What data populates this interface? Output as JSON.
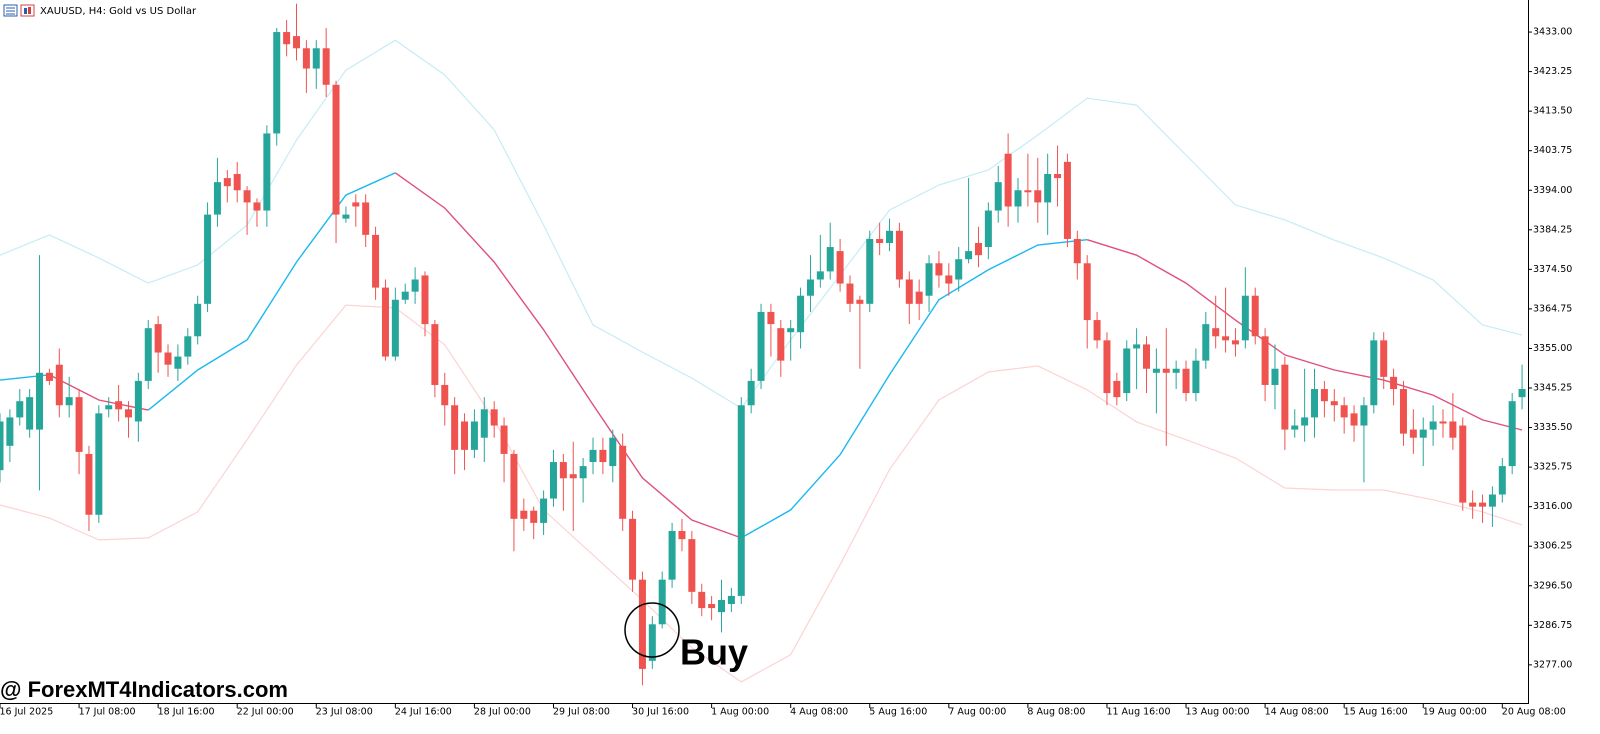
{
  "chart_data": {
    "type": "candlestick",
    "title": "XAUUSD, H4:  Gold vs US Dollar",
    "annotations": [
      "Buy",
      "@ ForexMT4Indicators.com"
    ],
    "up_color": "#26a69a",
    "down_color": "#ef5350",
    "xlim": [
      0,
      154.6
    ],
    "ylim": [
      3267.6,
      3440.9
    ],
    "yticks": [
      {
        "value": 3433,
        "label": "3433.00"
      },
      {
        "value": 3423.25,
        "label": "3423.25"
      },
      {
        "value": 3413.5,
        "label": "3413.50"
      },
      {
        "value": 3403.75,
        "label": "3403.75"
      },
      {
        "value": 3394,
        "label": "3394.00"
      },
      {
        "value": 3384.25,
        "label": "3384.25"
      },
      {
        "value": 3374.5,
        "label": "3374.50"
      },
      {
        "value": 3364.75,
        "label": "3364.75"
      },
      {
        "value": 3355,
        "label": "3355.00"
      },
      {
        "value": 3345.25,
        "label": "3345.25"
      },
      {
        "value": 3335.5,
        "label": "3335.50"
      },
      {
        "value": 3325.75,
        "label": "3325.75"
      },
      {
        "value": 3316,
        "label": "3316.00"
      },
      {
        "value": 3306.25,
        "label": "3306.25"
      },
      {
        "value": 3296.5,
        "label": "3296.50"
      },
      {
        "value": 3286.75,
        "label": "3286.75"
      },
      {
        "value": 3277,
        "label": "3277.00"
      }
    ],
    "xticks": [
      {
        "value": 0,
        "label": "16 Jul 2025"
      },
      {
        "value": 8,
        "label": "17 Jul 08:00"
      },
      {
        "value": 16,
        "label": "18 Jul 16:00"
      },
      {
        "value": 24,
        "label": "22 Jul 00:00"
      },
      {
        "value": 32,
        "label": "23 Jul 08:00"
      },
      {
        "value": 40,
        "label": "24 Jul 16:00"
      },
      {
        "value": 48,
        "label": "28 Jul 00:00"
      },
      {
        "value": 56,
        "label": "29 Jul 08:00"
      },
      {
        "value": 64,
        "label": "30 Jul 16:00"
      },
      {
        "value": 72,
        "label": "1 Aug 00:00"
      },
      {
        "value": 80,
        "label": "4 Aug 08:00"
      },
      {
        "value": 88,
        "label": "5 Aug 16:00"
      },
      {
        "value": 96,
        "label": "7 Aug 00:00"
      },
      {
        "value": 104,
        "label": "8 Aug 08:00"
      },
      {
        "value": 112,
        "label": "11 Aug 16:00"
      },
      {
        "value": 120,
        "label": "13 Aug 00:00"
      },
      {
        "value": 128,
        "label": "14 Aug 08:00"
      },
      {
        "value": 136,
        "label": "15 Aug 16:00"
      },
      {
        "value": 144,
        "label": "19 Aug 00:00"
      },
      {
        "value": 152,
        "label": "20 Aug 08:00"
      }
    ],
    "open": [
      3325,
      3331,
      3338,
      3335,
      3335,
      3349,
      3351,
      3341,
      3343,
      3329,
      3314,
      3340,
      3342,
      3340,
      3337,
      3347,
      3361,
      3354,
      3350,
      3353,
      3358,
      3366,
      3388,
      3397,
      3398,
      3394,
      3391,
      3389,
      3408,
      3433,
      3432,
      3429,
      3424,
      3429,
      3420,
      3387,
      3391,
      3391,
      3383,
      3370,
      3353,
      3367,
      3369,
      3373,
      3361,
      3346,
      3341,
      3337,
      3330,
      3333,
      3340,
      3336,
      3329,
      3315,
      3315,
      3312,
      3318,
      3327,
      3324,
      3323,
      3327,
      3330,
      3326,
      3331,
      3313,
      3298,
      3278,
      3287,
      3298,
      3310,
      3308,
      3295,
      3292,
      3290,
      3292,
      3294,
      3341,
      3347,
      3364,
      3360,
      3359,
      3359,
      3368,
      3372,
      3374,
      3379,
      3371,
      3367,
      3366,
      3382,
      3381,
      3384,
      3372,
      3369,
      3368,
      3376,
      3373,
      3372,
      3377,
      3381,
      3380,
      3389,
      3403,
      3390,
      3394,
      3394,
      3391,
      3398,
      3401,
      3382,
      3376,
      3362,
      3357,
      3347,
      3344,
      3355,
      3356,
      3349,
      3350,
      3349,
      3350,
      3344,
      3352,
      3360,
      3358,
      3357,
      3357,
      3368,
      3358,
      3346,
      3351,
      3335,
      3336,
      3338,
      3345,
      3342,
      3341,
      3339,
      3336,
      3341,
      3357,
      3348,
      3345,
      3335,
      3333,
      3335,
      3337,
      3337,
      3336,
      3317,
      3317,
      3316,
      3319,
      3326,
      3343
    ],
    "high": [
      3339,
      3340,
      3345,
      3345,
      3378,
      3350,
      3355,
      3348,
      3345,
      3331,
      3341,
      3343,
      3346,
      3342,
      3349,
      3362,
      3363,
      3356,
      3356,
      3360,
      3368,
      3391,
      3402,
      3399,
      3401,
      3395,
      3392,
      3410,
      3434,
      3436,
      3440,
      3431,
      3431,
      3434,
      3421,
      3390,
      3393,
      3393,
      3385,
      3372,
      3370,
      3371,
      3375,
      3374,
      3362,
      3349,
      3343,
      3339,
      3340,
      3343,
      3342,
      3338,
      3330,
      3318,
      3316,
      3320,
      3330,
      3329,
      3332,
      3328,
      3333,
      3333,
      3335,
      3334,
      3315,
      3300,
      3289,
      3300,
      3312,
      3313,
      3310,
      3297,
      3294,
      3298,
      3296,
      3343,
      3350,
      3366,
      3366,
      3362,
      3362,
      3370,
      3378,
      3383,
      3386,
      3382,
      3373,
      3368,
      3384,
      3386,
      3387,
      3386,
      3374,
      3372,
      3378,
      3379,
      3376,
      3380,
      3397,
      3385,
      3391,
      3400,
      3408,
      3397,
      3403,
      3402,
      3403,
      3405,
      3403,
      3384,
      3378,
      3364,
      3359,
      3349,
      3357,
      3360,
      3358,
      3355,
      3360,
      3352,
      3352,
      3355,
      3364,
      3368,
      3370,
      3360,
      3375,
      3370,
      3360,
      3356,
      3353,
      3340,
      3350,
      3350,
      3347,
      3345,
      3343,
      3341,
      3343,
      3359,
      3359,
      3350,
      3347,
      3340,
      3338,
      3341,
      3340,
      3344,
      3338,
      3320,
      3319,
      3321,
      3328,
      3344,
      3351
    ],
    "low": [
      3322,
      3327,
      3336,
      3333,
      3320,
      3346,
      3338,
      3338,
      3324,
      3310,
      3312,
      3338,
      3337,
      3333,
      3332,
      3345,
      3349,
      3348,
      3347,
      3351,
      3356,
      3364,
      3385,
      3391,
      3391,
      3383,
      3385,
      3385,
      3405,
      3427,
      3426,
      3418,
      3419,
      3417,
      3381,
      3386,
      3385,
      3380,
      3367,
      3352,
      3352,
      3366,
      3366,
      3358,
      3343,
      3336,
      3324,
      3325,
      3328,
      3327,
      3333,
      3322,
      3305,
      3310,
      3308,
      3309,
      3316,
      3315,
      3310,
      3317,
      3324,
      3324,
      3322,
      3310,
      3295,
      3272,
      3276,
      3286,
      3296,
      3305,
      3292,
      3289,
      3288,
      3285,
      3290,
      3292,
      3339,
      3345,
      3353,
      3348,
      3352,
      3355,
      3364,
      3370,
      3372,
      3369,
      3364,
      3350,
      3364,
      3378,
      3379,
      3370,
      3361,
      3362,
      3364,
      3370,
      3368,
      3369,
      3376,
      3375,
      3377,
      3386,
      3385,
      3386,
      3390,
      3386,
      3383,
      3390,
      3380,
      3372,
      3355,
      3355,
      3341,
      3341,
      3342,
      3345,
      3344,
      3339,
      3331,
      3345,
      3342,
      3342,
      3350,
      3355,
      3354,
      3353,
      3355,
      3356,
      3342,
      3340,
      3330,
      3333,
      3332,
      3333,
      3338,
      3337,
      3334,
      3332,
      3322,
      3339,
      3345,
      3341,
      3331,
      3329,
      3326,
      3331,
      3333,
      3330,
      3315,
      3313,
      3312,
      3311,
      3317,
      3324,
      3340
    ],
    "close": [
      3337,
      3338,
      3342,
      3343,
      3349,
      3347,
      3341,
      3343,
      3329.5,
      3314,
      3339,
      3341,
      3340,
      3338,
      3347,
      3360,
      3354,
      3351,
      3353,
      3358,
      3366,
      3388,
      3396,
      3395,
      3394,
      3391,
      3389,
      3408,
      3433,
      3430,
      3429,
      3424,
      3429,
      3420,
      3388,
      3388,
      3390,
      3383,
      3370,
      3353,
      3367,
      3369,
      3372,
      3361,
      3346,
      3341,
      3330,
      3330,
      3337,
      3340,
      3336,
      3329,
      3313,
      3313,
      3312,
      3318,
      3327,
      3323,
      3323,
      3326,
      3330,
      3327,
      3333,
      3313,
      3298,
      3276,
      3287,
      3298,
      3310,
      3308,
      3295,
      3291,
      3291,
      3293,
      3294,
      3341,
      3347,
      3364,
      3361,
      3352,
      3360,
      3368,
      3372,
      3374,
      3380,
      3371,
      3366,
      3366,
      3382,
      3381,
      3384,
      3372,
      3366,
      3366,
      3376,
      3373,
      3371,
      3377,
      3379,
      3378,
      3389,
      3396,
      3390,
      3394,
      3393.5,
      3391,
      3398,
      3397,
      3382,
      3376,
      3362,
      3357,
      3344,
      3343,
      3355,
      3356,
      3350,
      3350,
      3349,
      3350,
      3344,
      3352,
      3361,
      3358,
      3357,
      3356,
      3368,
      3358,
      3346,
      3350,
      3335,
      3336,
      3338,
      3345,
      3342,
      3341,
      3338,
      3336,
      3341,
      3357,
      3348,
      3345,
      3334,
      3333,
      3335,
      3337,
      3336.5,
      3333,
      3317,
      3316,
      3316,
      3319,
      3326,
      3342,
      3345
    ],
    "series": [
      {
        "color": "#c6ecf5",
        "x": [
          0,
          5,
          10,
          15,
          20,
          25,
          30,
          35,
          40,
          45,
          50,
          55,
          60,
          65,
          70,
          75,
          80,
          85,
          90,
          95,
          100,
          105,
          110,
          115,
          120,
          125,
          130,
          135,
          140,
          145,
          150,
          154
        ],
        "values": [
          3378.0,
          3383.0,
          3377.3,
          3371.1,
          3375.6,
          3385.4,
          3406.4,
          3423.6,
          3431.0,
          3422.4,
          3408.9,
          3385.4,
          3360.8,
          3354.1,
          3347.7,
          3340.3,
          3357.1,
          3373.1,
          3389.1,
          3395.3,
          3399.0,
          3407.6,
          3416.7,
          3415.0,
          3402.7,
          3390.4,
          3386.7,
          3381.7,
          3377.3,
          3371.9,
          3360.8,
          3358.3
        ]
      },
      {
        "up_color": "#1ab8f0",
        "down_color": "#e0507a",
        "x": [
          0,
          5,
          10,
          15,
          20,
          25,
          30,
          35,
          40,
          45,
          50,
          55,
          60,
          65,
          70,
          75,
          80,
          85,
          90,
          95,
          100,
          105,
          110,
          115,
          120,
          125,
          130,
          135,
          140,
          145,
          150,
          154
        ],
        "values": [
          3347.2,
          3348.5,
          3342.3,
          3339.8,
          3349.7,
          3357.1,
          3376.3,
          3392.8,
          3398.3,
          3389.6,
          3376.3,
          3359.6,
          3341.1,
          3323.1,
          3312.7,
          3308.3,
          3315.2,
          3328.8,
          3348.5,
          3367.0,
          3374.4,
          3380.5,
          3381.8,
          3378.0,
          3371.1,
          3362.0,
          3353.4,
          3349.7,
          3347.2,
          3343.5,
          3337.4,
          3334.9
        ]
      },
      {
        "color": "#fdd3d3",
        "x": [
          0,
          5,
          10,
          15,
          20,
          25,
          30,
          35,
          40,
          45,
          50,
          55,
          60,
          65,
          70,
          75,
          80,
          85,
          90,
          95,
          100,
          105,
          110,
          115,
          120,
          125,
          130,
          135,
          140,
          145,
          150,
          154
        ],
        "values": [
          3316.4,
          3313.2,
          3307.8,
          3308.3,
          3314.7,
          3332.5,
          3350.9,
          3365.7,
          3365.0,
          3355.9,
          3337.4,
          3315.2,
          3304.1,
          3293.0,
          3281.2,
          3272.8,
          3279.5,
          3301.7,
          3325.1,
          3342.3,
          3349.2,
          3350.7,
          3344.8,
          3336.9,
          3332.5,
          3328.0,
          3320.6,
          3320.1,
          3320.1,
          3317.7,
          3314.7,
          3311.5
        ]
      }
    ]
  }
}
